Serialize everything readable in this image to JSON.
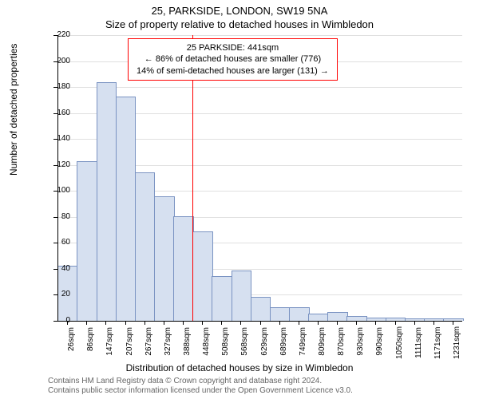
{
  "title_line1": "25, PARKSIDE, LONDON, SW19 5NA",
  "title_line2": "Size of property relative to detached houses in Wimbledon",
  "annotation": {
    "line1": "25 PARKSIDE: 441sqm",
    "line2": "← 86% of detached houses are smaller (776)",
    "line3": "14% of semi-detached houses are larger (131) →"
  },
  "ylabel": "Number of detached properties",
  "xlabel": "Distribution of detached houses by size in Wimbledon",
  "footer_line1": "Contains HM Land Registry data © Crown copyright and database right 2024.",
  "footer_line2": "Contains public sector information licensed under the Open Government Licence v3.0.",
  "chart": {
    "type": "histogram",
    "ylim": [
      0,
      220
    ],
    "ytick_step": 20,
    "yticks": [
      0,
      20,
      40,
      60,
      80,
      100,
      120,
      140,
      160,
      180,
      200,
      220
    ],
    "x_categories": [
      "26sqm",
      "86sqm",
      "147sqm",
      "207sqm",
      "267sqm",
      "327sqm",
      "388sqm",
      "448sqm",
      "508sqm",
      "568sqm",
      "629sqm",
      "689sqm",
      "749sqm",
      "809sqm",
      "870sqm",
      "930sqm",
      "990sqm",
      "1050sqm",
      "1111sqm",
      "1171sqm",
      "1231sqm"
    ],
    "values": [
      42,
      122,
      183,
      172,
      114,
      95,
      80,
      68,
      34,
      38,
      18,
      10,
      10,
      5,
      6,
      3,
      2,
      2,
      1,
      1,
      1
    ],
    "bar_fill": "#d6e0f0",
    "bar_stroke": "#7a93c2",
    "background_color": "#ffffff",
    "grid_color": "#e0e0e0",
    "axis_color": "#000000",
    "ref_line_x_index": 7,
    "ref_line_color": "#ff0000",
    "title_fontsize": 13,
    "label_fontsize": 12,
    "tick_fontsize": 10,
    "annotation_fontsize": 11,
    "footer_fontsize": 10,
    "footer_color": "#666666"
  }
}
